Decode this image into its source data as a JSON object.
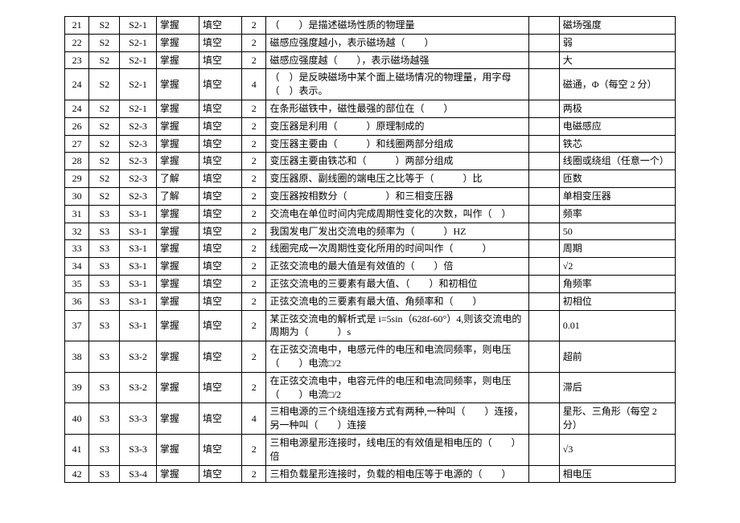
{
  "columns": [
    "seq",
    "s",
    "sub",
    "level",
    "type",
    "points",
    "question",
    "blank",
    "answer"
  ],
  "rows": [
    {
      "seq": "21",
      "s": "S2",
      "sub": "S2-1",
      "level": "掌握",
      "type": "填空",
      "points": "2",
      "question": "（　　）是描述磁场性质的物理量",
      "blank": "",
      "answer": "磁场强度"
    },
    {
      "seq": "22",
      "s": "S2",
      "sub": "S2-1",
      "level": "掌握",
      "type": "填空",
      "points": "2",
      "question": "磁感应强度越小，表示磁场越（　　）",
      "blank": "",
      "answer": "弱"
    },
    {
      "seq": "23",
      "s": "S2",
      "sub": "S2-1",
      "level": "掌握",
      "type": "填空",
      "points": "2",
      "question": "磁感应强度越（　　），表示磁场越强",
      "blank": "",
      "answer": "大"
    },
    {
      "seq": "24",
      "s": "S2",
      "sub": "S2-1",
      "level": "掌握",
      "type": "填空",
      "points": "4",
      "question": "（　）是反映磁场中某个面上磁场情况的物理量，用字母（　）表示。",
      "blank": "",
      "answer": "磁通，Φ（每空 2 分）"
    },
    {
      "seq": "24",
      "s": "S2",
      "sub": "S2-1",
      "level": "掌握",
      "type": "填空",
      "points": "2",
      "question": "在条形磁铁中，磁性最强的部位在（　　）",
      "blank": "",
      "answer": "两极"
    },
    {
      "seq": "26",
      "s": "S2",
      "sub": "S2-3",
      "level": "掌握",
      "type": "填空",
      "points": "2",
      "question": "变压器是利用（　　　）原理制成的",
      "blank": "",
      "answer": "电磁感应"
    },
    {
      "seq": "27",
      "s": "S2",
      "sub": "S2-3",
      "level": "掌握",
      "type": "填空",
      "points": "2",
      "question": "变压器主要由（　　　）和线圈两部分组成",
      "blank": "",
      "answer": "铁芯"
    },
    {
      "seq": "28",
      "s": "S2",
      "sub": "S2-3",
      "level": "掌握",
      "type": "填空",
      "points": "2",
      "question": "变压器主要由铁芯和（　　　）两部分组成",
      "blank": "",
      "answer": "线圈或绕组（任意一个）"
    },
    {
      "seq": "29",
      "s": "S2",
      "sub": "S2-3",
      "level": "了解",
      "type": "填空",
      "points": "2",
      "question": "变压器原、副线圈的端电压之比等于（　　　）比",
      "blank": "",
      "answer": "匝数"
    },
    {
      "seq": "30",
      "s": "S2",
      "sub": "S2-3",
      "level": "了解",
      "type": "填空",
      "points": "2",
      "question": "变压器按相数分（　　　　）和三相变压器",
      "blank": "",
      "answer": "单相变压器"
    },
    {
      "seq": "31",
      "s": "S3",
      "sub": "S3-1",
      "level": "掌握",
      "type": "填空",
      "points": "2",
      "question": "交流电在单位时间内完成周期性变化的次数，叫作（　）",
      "blank": "",
      "answer": "频率"
    },
    {
      "seq": "32",
      "s": "S3",
      "sub": "S3-1",
      "level": "掌握",
      "type": "填空",
      "points": "2",
      "question": "我国发电厂发出交流电的频率为（　　　）HZ",
      "blank": "",
      "answer": "50"
    },
    {
      "seq": "33",
      "s": "S3",
      "sub": "S3-1",
      "level": "掌握",
      "type": "填空",
      "points": "2",
      "question": "线圈完成一次周期性变化所用的时间叫作（　　　）",
      "blank": "",
      "answer": "周期"
    },
    {
      "seq": "34",
      "s": "S3",
      "sub": "S3-1",
      "level": "掌握",
      "type": "填空",
      "points": "2",
      "question": "正弦交流电的最大值是有效值的（　　）倍",
      "blank": "",
      "answer": "√2"
    },
    {
      "seq": "35",
      "s": "S3",
      "sub": "S3-1",
      "level": "掌握",
      "type": "填空",
      "points": "2",
      "question": "正弦交流电的三要素有最大值、（　　）和初相位",
      "blank": "",
      "answer": "角频率"
    },
    {
      "seq": "36",
      "s": "S3",
      "sub": "S3-1",
      "level": "掌握",
      "type": "填空",
      "points": "2",
      "question": "正弦交流电的三要素有最大值、角频率和（　　）",
      "blank": "",
      "answer": "初相位"
    },
    {
      "seq": "37",
      "s": "S3",
      "sub": "S3-1",
      "level": "掌握",
      "type": "填空",
      "points": "2",
      "question": "某正弦交流电的解析式是 i=5sin（628f-60°）4,则该交流电的周期为（　　　）s",
      "blank": "",
      "answer": "0.01"
    },
    {
      "seq": "38",
      "s": "S3",
      "sub": "S3-2",
      "level": "掌握",
      "type": "填空",
      "points": "2",
      "question": "在正弦交流电中，电感元件的电压和电流同频率，则电压（　　）电流□/2",
      "blank": "",
      "answer": "超前"
    },
    {
      "seq": "39",
      "s": "S3",
      "sub": "S3-2",
      "level": "掌握",
      "type": "填空",
      "points": "2",
      "question": "在正弦交流电中，电容元件的电压和电流同频率，则电压（　　）电流□/2",
      "blank": "",
      "answer": "滞后"
    },
    {
      "seq": "40",
      "s": "S3",
      "sub": "S3-3",
      "level": "掌握",
      "type": "填空",
      "points": "4",
      "question": "三相电源的三个绕组连接方式有两种,一种叫（　　）连接，另一种叫（　　）连接",
      "blank": "",
      "answer": "星形、三角形（每空 2 分）"
    },
    {
      "seq": "41",
      "s": "S3",
      "sub": "S3-3",
      "level": "掌握",
      "type": "填空",
      "points": "2",
      "question": "三相电源星形连接时，线电压的有效值是相电压的（　　）倍",
      "blank": "",
      "answer": "√3"
    },
    {
      "seq": "42",
      "s": "S3",
      "sub": "S3-4",
      "level": "掌握",
      "type": "填空",
      "points": "2",
      "question": "三相负载星形连接时，负载的相电压等于电源的（　　）",
      "blank": "",
      "answer": "相电压"
    }
  ]
}
